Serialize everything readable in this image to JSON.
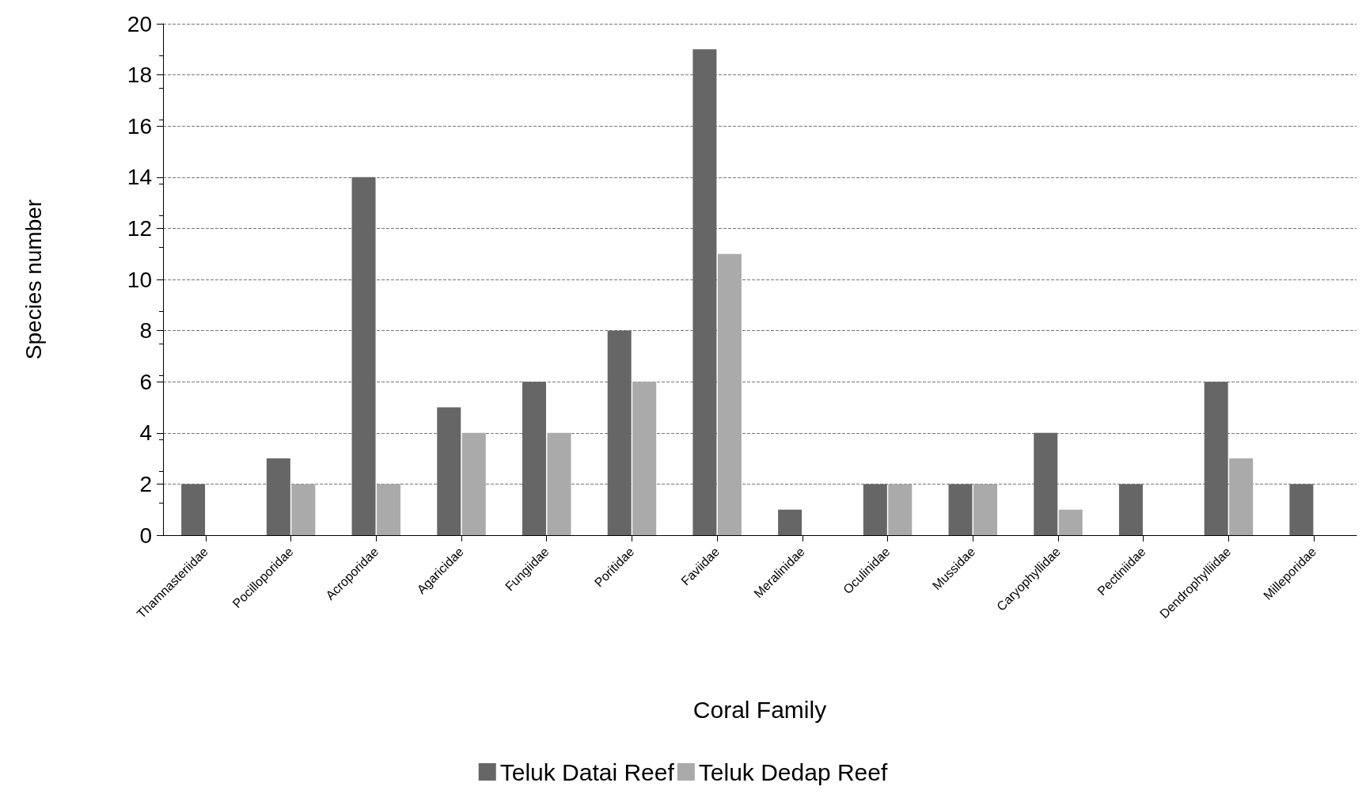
{
  "chart_data": {
    "type": "bar",
    "xlabel": "Coral Family",
    "ylabel": "Species number",
    "categories": [
      "Thamnasteriidae",
      "Pocilloporidae",
      "Acroporidae",
      "Agaricidae",
      "Fungiidae",
      "Poritidae",
      "Faviidae",
      "Meralinidae",
      "Oculinidae",
      "Mussidae",
      "Caryophyllidae",
      "Pectiniidae",
      "Dendrophylliidae",
      "Milleporidae"
    ],
    "series": [
      {
        "name": "Teluk Datai Reef",
        "color": "#666666",
        "values": [
          2,
          3,
          14,
          5,
          6,
          8,
          19,
          1,
          2,
          2,
          4,
          2,
          6,
          2
        ]
      },
      {
        "name": "Teluk Dedap Reef",
        "color": "#aaaaaa",
        "values": [
          0,
          2,
          2,
          4,
          4,
          6,
          11,
          0,
          2,
          2,
          1,
          0,
          3,
          0
        ]
      }
    ],
    "ylim": [
      0,
      20
    ],
    "yticks": [
      0,
      2,
      4,
      6,
      8,
      10,
      12,
      14,
      16,
      18,
      20
    ],
    "grid": "y",
    "legend": "bottom"
  }
}
